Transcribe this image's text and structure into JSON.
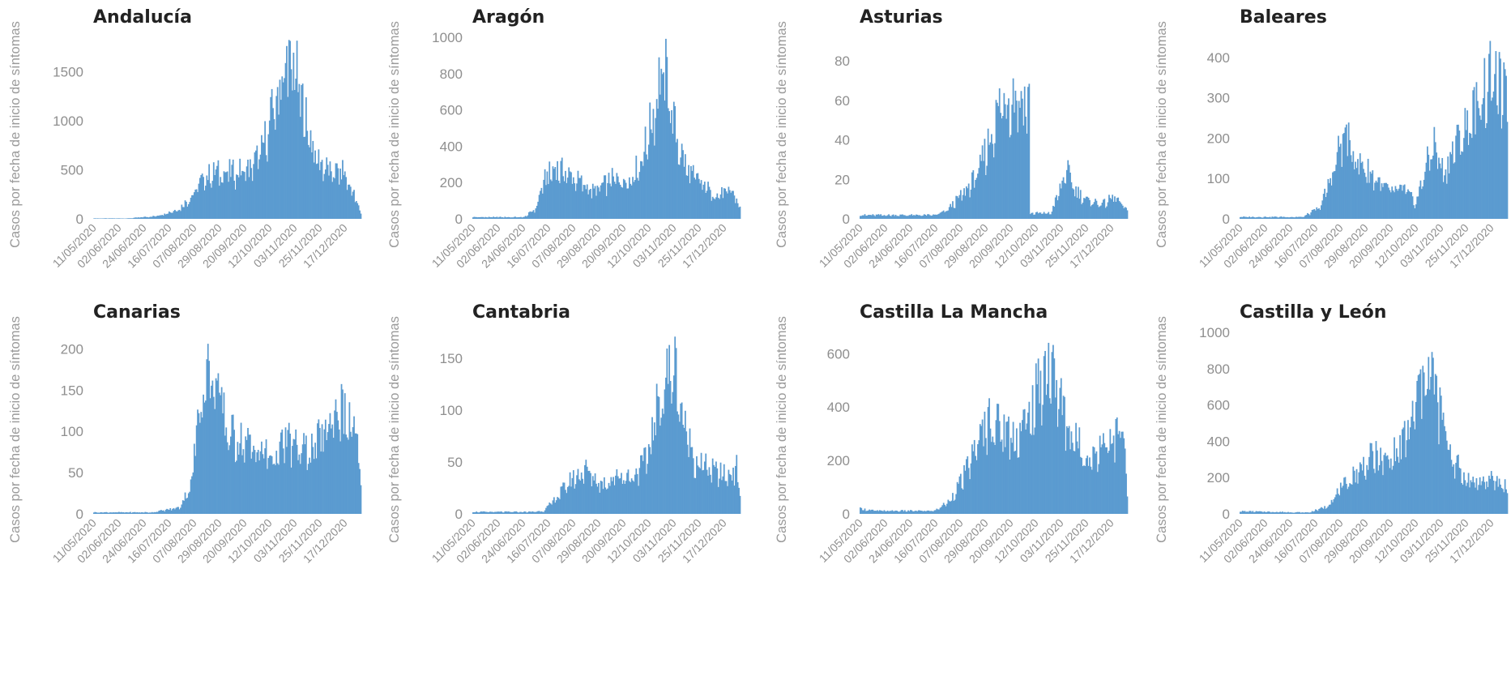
{
  "colors": {
    "bar": "#5b9bd0",
    "axis_text": "#8f8f8f",
    "title": "#222222"
  },
  "chart_data": [
    {
      "type": "bar",
      "title": "Andalucía",
      "ylabel": "Casos por fecha de inicio de síntomas",
      "xlabel": "",
      "ylim": [
        0,
        1850
      ],
      "yticks": [
        0,
        500,
        1000,
        1500
      ],
      "x_tick_labels": [
        "11/05/2020",
        "02/06/2020",
        "24/06/2020",
        "16/07/2020",
        "07/08/2020",
        "29/08/2020",
        "20/09/2020",
        "12/10/2020",
        "03/11/2020",
        "25/11/2020",
        "17/12/2020"
      ],
      "x_start": "2020-05-11",
      "x_end": "2020-12-31",
      "profile": [
        [
          "2020-05-11",
          5
        ],
        [
          "2020-06-10",
          5
        ],
        [
          "2020-07-05",
          30
        ],
        [
          "2020-07-25",
          110
        ],
        [
          "2020-08-05",
          250
        ],
        [
          "2020-08-15",
          440
        ],
        [
          "2020-08-25",
          500
        ],
        [
          "2020-09-10",
          500
        ],
        [
          "2020-09-25",
          540
        ],
        [
          "2020-10-05",
          720
        ],
        [
          "2020-10-15",
          1150
        ],
        [
          "2020-10-22",
          1500
        ],
        [
          "2020-10-28",
          1700
        ],
        [
          "2020-11-03",
          1620
        ],
        [
          "2020-11-12",
          1100
        ],
        [
          "2020-11-22",
          660
        ],
        [
          "2020-12-05",
          490
        ],
        [
          "2020-12-15",
          520
        ],
        [
          "2020-12-25",
          260
        ],
        [
          "2020-12-31",
          60
        ]
      ]
    },
    {
      "type": "bar",
      "title": "Aragón",
      "ylabel": "Casos por fecha de inicio de síntomas",
      "xlabel": "",
      "ylim": [
        0,
        1000
      ],
      "yticks": [
        0,
        200,
        400,
        600,
        800,
        1000
      ],
      "x_tick_labels": [
        "11/05/2020",
        "02/06/2020",
        "24/06/2020",
        "16/07/2020",
        "07/08/2020",
        "29/08/2020",
        "20/09/2020",
        "12/10/2020",
        "03/11/2020",
        "25/11/2020",
        "17/12/2020"
      ],
      "x_start": "2020-05-11",
      "x_end": "2020-12-31",
      "profile": [
        [
          "2020-05-11",
          10
        ],
        [
          "2020-06-25",
          10
        ],
        [
          "2020-07-05",
          60
        ],
        [
          "2020-07-12",
          220
        ],
        [
          "2020-07-22",
          300
        ],
        [
          "2020-08-05",
          250
        ],
        [
          "2020-08-25",
          160
        ],
        [
          "2020-09-10",
          230
        ],
        [
          "2020-09-25",
          230
        ],
        [
          "2020-10-05",
          330
        ],
        [
          "2020-10-15",
          580
        ],
        [
          "2020-10-22",
          840
        ],
        [
          "2020-10-28",
          820
        ],
        [
          "2020-11-05",
          480
        ],
        [
          "2020-11-15",
          280
        ],
        [
          "2020-11-28",
          200
        ],
        [
          "2020-12-10",
          140
        ],
        [
          "2020-12-25",
          160
        ],
        [
          "2020-12-31",
          60
        ]
      ]
    },
    {
      "type": "bar",
      "title": "Asturias",
      "ylabel": "Casos por fecha de inicio de síntomas",
      "xlabel": "",
      "ylim": [
        0,
        92
      ],
      "yticks": [
        0,
        20,
        40,
        60,
        80
      ],
      "x_tick_labels": [
        "11/05/2020",
        "02/06/2020",
        "24/06/2020",
        "16/07/2020",
        "07/08/2020",
        "29/08/2020",
        "20/09/2020",
        "12/10/2020",
        "03/11/2020",
        "25/11/2020",
        "17/12/2020"
      ],
      "x_start": "2020-05-11",
      "x_end": "2020-12-31",
      "profile": [
        [
          "2020-05-11",
          2
        ],
        [
          "2020-07-15",
          2
        ],
        [
          "2020-07-25",
          4
        ],
        [
          "2020-08-10",
          14
        ],
        [
          "2020-08-22",
          24
        ],
        [
          "2020-09-01",
          42
        ],
        [
          "2020-09-10",
          60
        ],
        [
          "2020-09-20",
          68
        ],
        [
          "2020-10-01",
          64
        ],
        [
          "2020-10-06",
          62
        ],
        [
          "2020-10-07",
          3
        ],
        [
          "2020-10-25",
          3
        ],
        [
          "2020-11-01",
          14
        ],
        [
          "2020-11-08",
          26
        ],
        [
          "2020-11-15",
          16
        ],
        [
          "2020-11-25",
          10
        ],
        [
          "2020-12-10",
          8
        ],
        [
          "2020-12-20",
          12
        ],
        [
          "2020-12-31",
          4
        ]
      ]
    },
    {
      "type": "bar",
      "title": "Baleares",
      "ylabel": "Casos por fecha de inicio de síntomas",
      "xlabel": "",
      "ylim": [
        0,
        450
      ],
      "yticks": [
        0,
        100,
        200,
        300,
        400
      ],
      "x_tick_labels": [
        "11/05/2020",
        "02/06/2020",
        "24/06/2020",
        "16/07/2020",
        "07/08/2020",
        "29/08/2020",
        "20/09/2020",
        "12/10/2020",
        "03/11/2020",
        "25/11/2020",
        "17/12/2020"
      ],
      "x_start": "2020-05-11",
      "x_end": "2020-12-31",
      "profile": [
        [
          "2020-05-11",
          5
        ],
        [
          "2020-07-05",
          5
        ],
        [
          "2020-07-20",
          30
        ],
        [
          "2020-08-01",
          130
        ],
        [
          "2020-08-10",
          230
        ],
        [
          "2020-08-20",
          160
        ],
        [
          "2020-09-05",
          110
        ],
        [
          "2020-09-20",
          70
        ],
        [
          "2020-10-01",
          80
        ],
        [
          "2020-10-12",
          40
        ],
        [
          "2020-10-20",
          130
        ],
        [
          "2020-10-28",
          200
        ],
        [
          "2020-11-05",
          120
        ],
        [
          "2020-11-15",
          190
        ],
        [
          "2020-11-25",
          240
        ],
        [
          "2020-12-05",
          300
        ],
        [
          "2020-12-15",
          380
        ],
        [
          "2020-12-25",
          340
        ],
        [
          "2020-12-31",
          300
        ]
      ]
    },
    {
      "type": "bar",
      "title": "Canarias",
      "ylabel": "Casos por fecha de inicio de síntomas",
      "xlabel": "",
      "ylim": [
        0,
        220
      ],
      "yticks": [
        0,
        50,
        100,
        150,
        200
      ],
      "x_tick_labels": [
        "11/05/2020",
        "02/06/2020",
        "24/06/2020",
        "16/07/2020",
        "07/08/2020",
        "29/08/2020",
        "20/09/2020",
        "12/10/2020",
        "03/11/2020",
        "25/11/2020",
        "17/12/2020"
      ],
      "x_start": "2020-05-11",
      "x_end": "2020-12-31",
      "profile": [
        [
          "2020-05-11",
          2
        ],
        [
          "2020-07-01",
          2
        ],
        [
          "2020-07-25",
          8
        ],
        [
          "2020-08-05",
          40
        ],
        [
          "2020-08-10",
          130
        ],
        [
          "2020-08-18",
          185
        ],
        [
          "2020-08-28",
          160
        ],
        [
          "2020-09-05",
          105
        ],
        [
          "2020-09-25",
          88
        ],
        [
          "2020-10-15",
          72
        ],
        [
          "2020-10-28",
          95
        ],
        [
          "2020-11-08",
          80
        ],
        [
          "2020-11-20",
          85
        ],
        [
          "2020-12-01",
          110
        ],
        [
          "2020-12-12",
          140
        ],
        [
          "2020-12-20",
          115
        ],
        [
          "2020-12-27",
          105
        ],
        [
          "2020-12-31",
          30
        ]
      ]
    },
    {
      "type": "bar",
      "title": "Cantabria",
      "ylabel": "Casos por fecha de inicio de síntomas",
      "xlabel": "",
      "ylim": [
        0,
        175
      ],
      "yticks": [
        0,
        50,
        100,
        150
      ],
      "x_tick_labels": [
        "11/05/2020",
        "02/06/2020",
        "24/06/2020",
        "16/07/2020",
        "07/08/2020",
        "29/08/2020",
        "20/09/2020",
        "12/10/2020",
        "03/11/2020",
        "25/11/2020",
        "17/12/2020"
      ],
      "x_start": "2020-05-11",
      "x_end": "2020-12-31",
      "profile": [
        [
          "2020-05-11",
          2
        ],
        [
          "2020-06-30",
          2
        ],
        [
          "2020-07-12",
          3
        ],
        [
          "2020-07-22",
          15
        ],
        [
          "2020-08-05",
          35
        ],
        [
          "2020-08-18",
          45
        ],
        [
          "2020-09-01",
          30
        ],
        [
          "2020-09-15",
          40
        ],
        [
          "2020-09-28",
          38
        ],
        [
          "2020-10-10",
          55
        ],
        [
          "2020-10-20",
          110
        ],
        [
          "2020-10-28",
          140
        ],
        [
          "2020-11-04",
          150
        ],
        [
          "2020-11-12",
          90
        ],
        [
          "2020-11-22",
          55
        ],
        [
          "2020-12-05",
          45
        ],
        [
          "2020-12-20",
          38
        ],
        [
          "2020-12-28",
          48
        ],
        [
          "2020-12-31",
          20
        ]
      ]
    },
    {
      "type": "bar",
      "title": "Castilla La Mancha",
      "ylabel": "Casos por fecha de inicio de síntomas",
      "xlabel": "",
      "ylim": [
        0,
        680
      ],
      "yticks": [
        0,
        200,
        400,
        600
      ],
      "x_tick_labels": [
        "11/05/2020",
        "02/06/2020",
        "24/06/2020",
        "16/07/2020",
        "07/08/2020",
        "29/08/2020",
        "20/09/2020",
        "12/10/2020",
        "03/11/2020",
        "25/11/2020",
        "17/12/2020"
      ],
      "x_start": "2020-05-11",
      "x_end": "2020-12-31",
      "profile": [
        [
          "2020-05-11",
          20
        ],
        [
          "2020-05-25",
          12
        ],
        [
          "2020-07-15",
          12
        ],
        [
          "2020-07-28",
          50
        ],
        [
          "2020-08-10",
          150
        ],
        [
          "2020-08-20",
          260
        ],
        [
          "2020-09-01",
          380
        ],
        [
          "2020-09-12",
          340
        ],
        [
          "2020-09-25",
          310
        ],
        [
          "2020-10-08",
          400
        ],
        [
          "2020-10-18",
          560
        ],
        [
          "2020-10-24",
          600
        ],
        [
          "2020-10-30",
          500
        ],
        [
          "2020-11-10",
          330
        ],
        [
          "2020-11-22",
          250
        ],
        [
          "2020-12-01",
          220
        ],
        [
          "2020-12-10",
          300
        ],
        [
          "2020-12-20",
          310
        ],
        [
          "2020-12-28",
          330
        ],
        [
          "2020-12-31",
          60
        ]
      ]
    },
    {
      "type": "bar",
      "title": "Castilla y León",
      "ylabel": "Casos por fecha de inicio de síntomas",
      "xlabel": "",
      "ylim": [
        0,
        1000
      ],
      "yticks": [
        0,
        200,
        400,
        600,
        800,
        1000
      ],
      "x_tick_labels": [
        "11/05/2020",
        "02/06/2020",
        "24/06/2020",
        "16/07/2020",
        "07/08/2020",
        "29/08/2020",
        "20/09/2020",
        "12/10/2020",
        "03/11/2020",
        "25/11/2020",
        "17/12/2020"
      ],
      "x_start": "2020-05-11",
      "x_end": "2020-12-31",
      "profile": [
        [
          "2020-05-11",
          15
        ],
        [
          "2020-07-10",
          8
        ],
        [
          "2020-07-25",
          40
        ],
        [
          "2020-08-08",
          150
        ],
        [
          "2020-08-22",
          250
        ],
        [
          "2020-09-05",
          340
        ],
        [
          "2020-09-15",
          300
        ],
        [
          "2020-09-28",
          380
        ],
        [
          "2020-10-08",
          520
        ],
        [
          "2020-10-18",
          820
        ],
        [
          "2020-10-25",
          850
        ],
        [
          "2020-11-02",
          600
        ],
        [
          "2020-11-12",
          350
        ],
        [
          "2020-11-22",
          220
        ],
        [
          "2020-12-05",
          180
        ],
        [
          "2020-12-15",
          200
        ],
        [
          "2020-12-25",
          180
        ],
        [
          "2020-12-31",
          150
        ]
      ]
    }
  ]
}
